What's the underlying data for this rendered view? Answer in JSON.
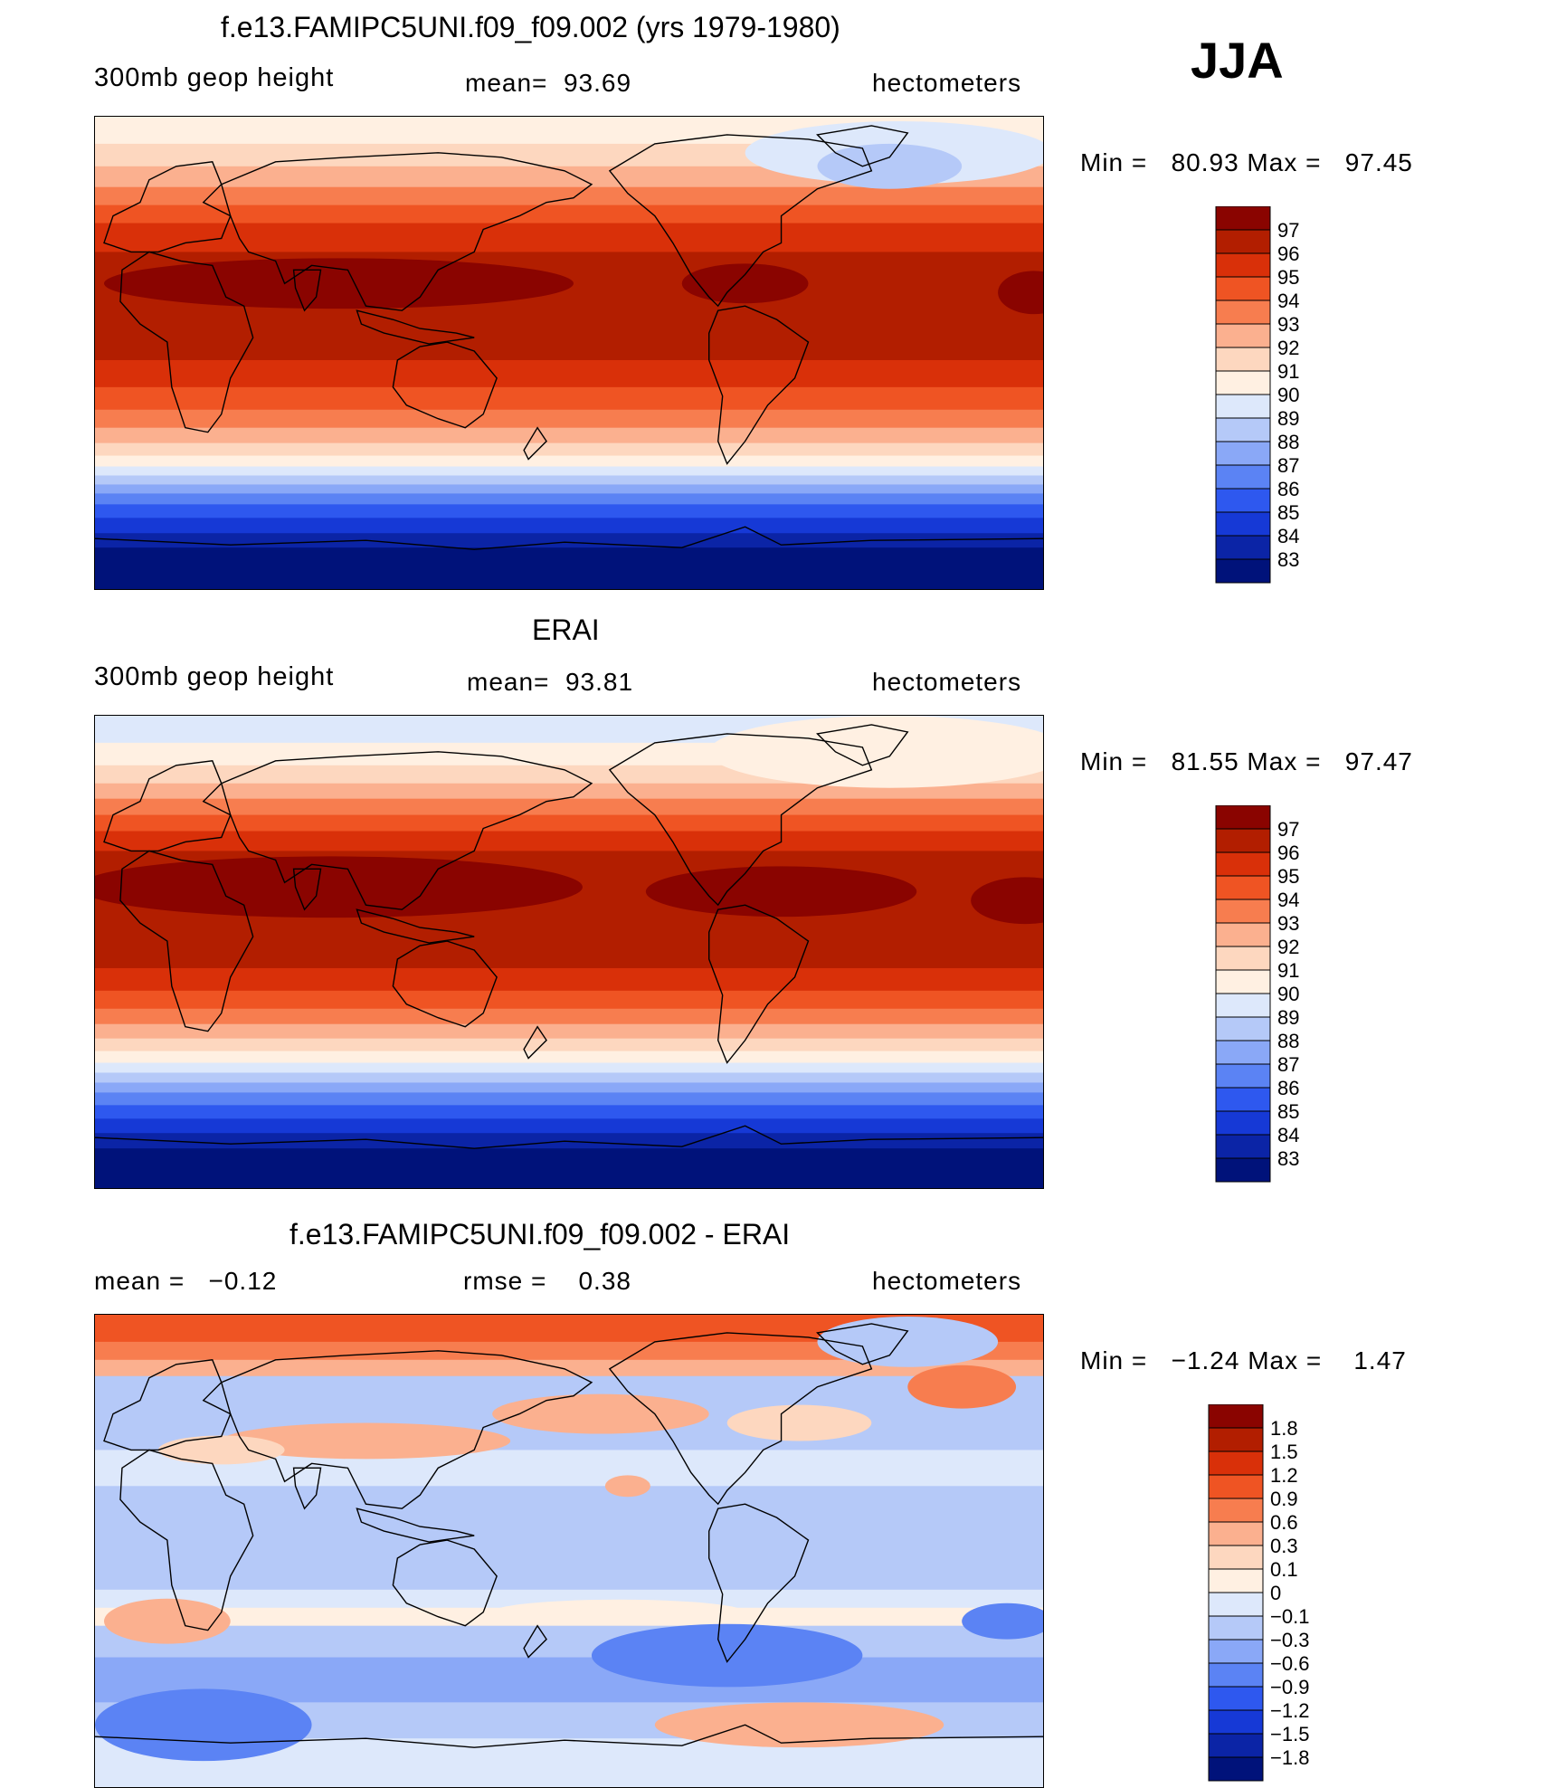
{
  "season": "JJA",
  "palettes": {
    "main": [
      "#00127a",
      "#0b24a6",
      "#1639d6",
      "#2e58ef",
      "#5b83f4",
      "#8aa8f7",
      "#b5c9f8",
      "#dde8fb",
      "#fff0e2",
      "#fdd7bf",
      "#fbb08f",
      "#f77d4f",
      "#ef5423",
      "#d93009",
      "#b21e00",
      "#8a0400"
    ],
    "diff": [
      "#00127a",
      "#0b24a6",
      "#1639d6",
      "#2e58ef",
      "#5b83f4",
      "#8aa8f7",
      "#b5c9f8",
      "#dde8fb",
      "#fff0e2",
      "#fdd7bf",
      "#fbb08f",
      "#f77d4f",
      "#ef5423",
      "#d93009",
      "#b21e00",
      "#8a0400"
    ]
  },
  "panels": [
    {
      "title": "f.e13.FAMIPC5UNI.f09_f09.002 (yrs 1979-1980)",
      "left": "300mb geop height",
      "center": "mean=  93.69",
      "right": "hectometers",
      "minmax": "Min =   80.93 Max =   97.45",
      "colorbar": {
        "levels": [
          "97",
          "96",
          "95",
          "94",
          "93",
          "92",
          "91",
          "90",
          "89",
          "88",
          "87",
          "86",
          "85",
          "84",
          "83"
        ]
      },
      "bands": [
        {
          "y": 0,
          "c": 8
        },
        {
          "y": 30,
          "c": 9
        },
        {
          "y": 55,
          "c": 10
        },
        {
          "y": 78,
          "c": 11
        },
        {
          "y": 98,
          "c": 12
        },
        {
          "y": 118,
          "c": 13
        },
        {
          "y": 150,
          "c": 14
        },
        {
          "y": 270,
          "c": 13
        },
        {
          "y": 300,
          "c": 12
        },
        {
          "y": 325,
          "c": 11
        },
        {
          "y": 345,
          "c": 10
        },
        {
          "y": 362,
          "c": 9
        },
        {
          "y": 376,
          "c": 8
        },
        {
          "y": 388,
          "c": 7
        },
        {
          "y": 398,
          "c": 6
        },
        {
          "y": 408,
          "c": 5
        },
        {
          "y": 418,
          "c": 4
        },
        {
          "y": 430,
          "c": 3
        },
        {
          "y": 445,
          "c": 2
        },
        {
          "y": 462,
          "c": 1
        },
        {
          "y": 478,
          "c": 0
        }
      ],
      "blobs": [
        {
          "cx": 270,
          "cy": 185,
          "rx": 260,
          "ry": 28,
          "c": 15
        },
        {
          "cx": 720,
          "cy": 185,
          "rx": 70,
          "ry": 22,
          "c": 15
        },
        {
          "cx": 1040,
          "cy": 195,
          "rx": 40,
          "ry": 24,
          "c": 15
        },
        {
          "cx": 890,
          "cy": 40,
          "rx": 170,
          "ry": 35,
          "c": 7
        },
        {
          "cx": 880,
          "cy": 55,
          "rx": 80,
          "ry": 25,
          "c": 6
        }
      ]
    },
    {
      "title": "ERAI",
      "left": "300mb geop height",
      "center": "mean=  93.81",
      "right": "hectometers",
      "minmax": "Min =   81.55 Max =   97.47",
      "colorbar": {
        "levels": [
          "97",
          "96",
          "95",
          "94",
          "93",
          "92",
          "91",
          "90",
          "89",
          "88",
          "87",
          "86",
          "85",
          "84",
          "83"
        ]
      },
      "bands": [
        {
          "y": 0,
          "c": 7
        },
        {
          "y": 30,
          "c": 8
        },
        {
          "y": 55,
          "c": 9
        },
        {
          "y": 75,
          "c": 10
        },
        {
          "y": 92,
          "c": 11
        },
        {
          "y": 110,
          "c": 12
        },
        {
          "y": 128,
          "c": 13
        },
        {
          "y": 150,
          "c": 14
        },
        {
          "y": 280,
          "c": 13
        },
        {
          "y": 305,
          "c": 12
        },
        {
          "y": 325,
          "c": 11
        },
        {
          "y": 342,
          "c": 10
        },
        {
          "y": 358,
          "c": 9
        },
        {
          "y": 372,
          "c": 8
        },
        {
          "y": 385,
          "c": 7
        },
        {
          "y": 396,
          "c": 6
        },
        {
          "y": 407,
          "c": 5
        },
        {
          "y": 418,
          "c": 4
        },
        {
          "y": 432,
          "c": 3
        },
        {
          "y": 447,
          "c": 2
        },
        {
          "y": 463,
          "c": 1
        },
        {
          "y": 480,
          "c": 0
        }
      ],
      "blobs": [
        {
          "cx": 260,
          "cy": 190,
          "rx": 280,
          "ry": 34,
          "c": 15
        },
        {
          "cx": 760,
          "cy": 195,
          "rx": 150,
          "ry": 28,
          "c": 15
        },
        {
          "cx": 1030,
          "cy": 205,
          "rx": 60,
          "ry": 26,
          "c": 15
        },
        {
          "cx": 880,
          "cy": 40,
          "rx": 200,
          "ry": 40,
          "c": 8
        }
      ]
    },
    {
      "title": "f.e13.FAMIPC5UNI.f09_f09.002 - ERAI",
      "left": "mean =   −0.12",
      "center": "rmse =    0.38",
      "right": "hectometers",
      "minmax": "Min =   −1.24 Max =    1.47",
      "colorbar": {
        "levels": [
          "1.8",
          "1.5",
          "1.2",
          "0.9",
          "0.6",
          "0.3",
          "0.1",
          "0",
          "−0.1",
          "−0.3",
          "−0.6",
          "−0.9",
          "−1.2",
          "−1.5",
          "−1.8"
        ]
      },
      "bands": [
        {
          "y": 0,
          "c": 12
        },
        {
          "y": 30,
          "c": 11
        },
        {
          "y": 50,
          "c": 10
        },
        {
          "y": 68,
          "c": 6
        },
        {
          "y": 150,
          "c": 7
        },
        {
          "y": 190,
          "c": 6
        },
        {
          "y": 305,
          "c": 7
        },
        {
          "y": 325,
          "c": 8
        },
        {
          "y": 345,
          "c": 6
        },
        {
          "y": 380,
          "c": 5
        },
        {
          "y": 430,
          "c": 6
        },
        {
          "y": 470,
          "c": 7
        }
      ],
      "blobs": [
        {
          "cx": 560,
          "cy": 110,
          "rx": 120,
          "ry": 22,
          "c": 10
        },
        {
          "cx": 300,
          "cy": 140,
          "rx": 160,
          "ry": 20,
          "c": 10
        },
        {
          "cx": 140,
          "cy": 150,
          "rx": 70,
          "ry": 16,
          "c": 9
        },
        {
          "cx": 960,
          "cy": 80,
          "rx": 60,
          "ry": 24,
          "c": 11
        },
        {
          "cx": 780,
          "cy": 120,
          "rx": 80,
          "ry": 20,
          "c": 9
        },
        {
          "cx": 900,
          "cy": 30,
          "rx": 100,
          "ry": 28,
          "c": 6
        },
        {
          "cx": 700,
          "cy": 378,
          "rx": 150,
          "ry": 35,
          "c": 4
        },
        {
          "cx": 780,
          "cy": 455,
          "rx": 160,
          "ry": 25,
          "c": 10
        },
        {
          "cx": 120,
          "cy": 455,
          "rx": 120,
          "ry": 40,
          "c": 4
        },
        {
          "cx": 80,
          "cy": 340,
          "rx": 70,
          "ry": 25,
          "c": 10
        },
        {
          "cx": 580,
          "cy": 330,
          "rx": 140,
          "ry": 14,
          "c": 8
        },
        {
          "cx": 1010,
          "cy": 340,
          "rx": 50,
          "ry": 20,
          "c": 4
        },
        {
          "cx": 590,
          "cy": 190,
          "rx": 25,
          "ry": 12,
          "c": 10
        }
      ]
    }
  ]
}
